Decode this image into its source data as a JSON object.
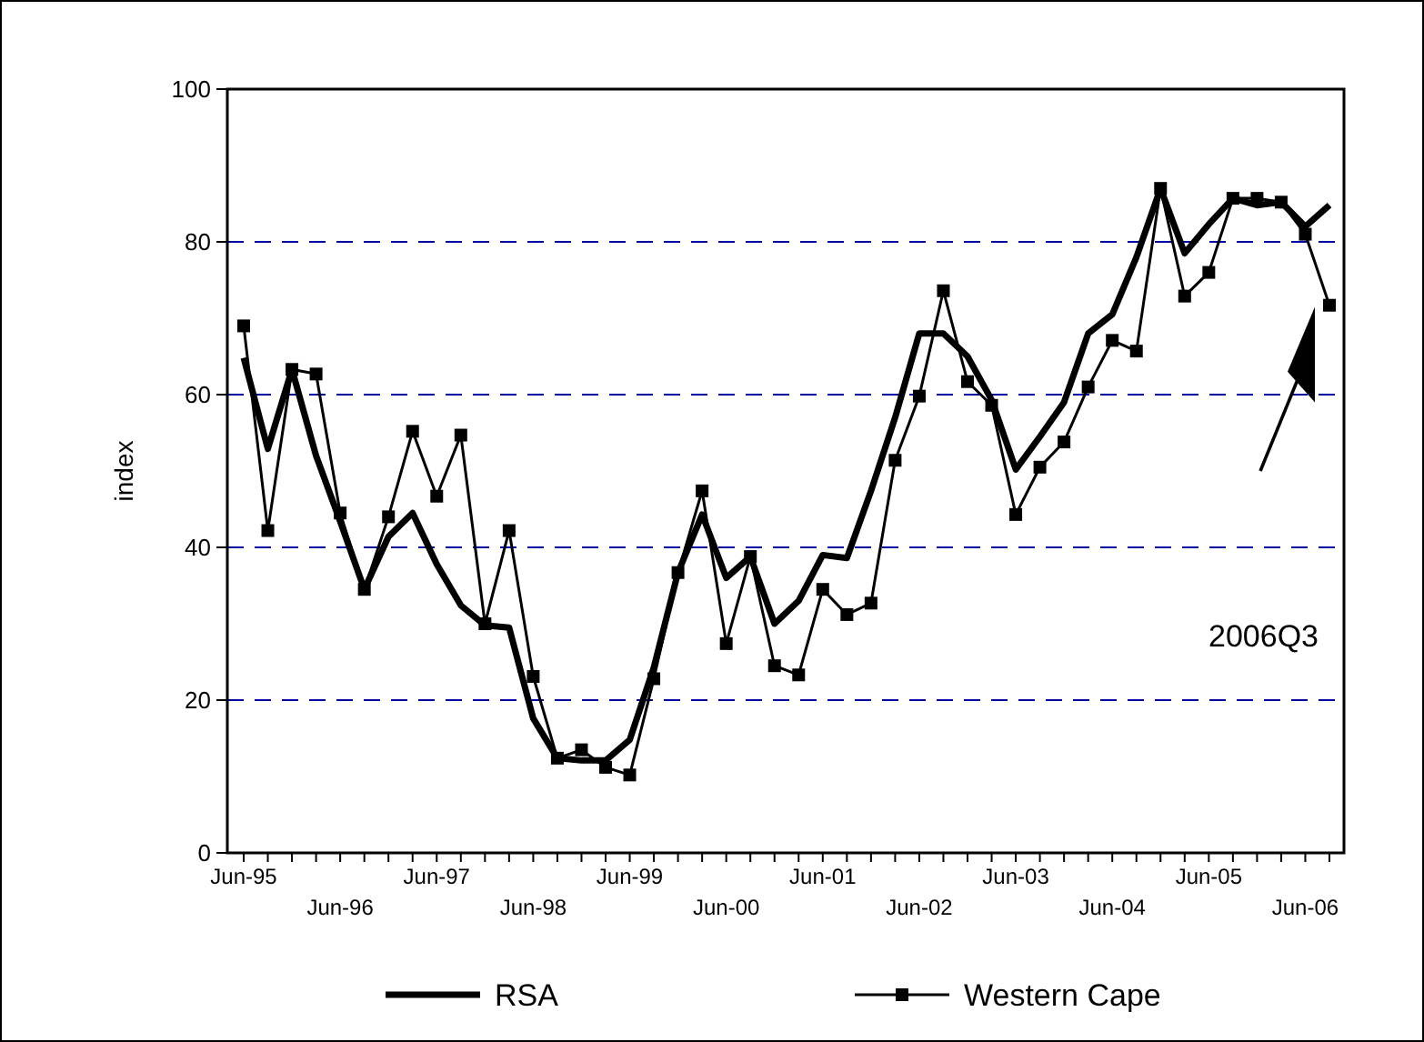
{
  "chart_data": {
    "type": "line",
    "ylabel": "index",
    "categories": [
      "Jun-95",
      null,
      null,
      null,
      "Jun-96",
      null,
      null,
      null,
      "Jun-97",
      null,
      null,
      null,
      "Jun-98",
      null,
      null,
      null,
      "Jun-99",
      null,
      null,
      null,
      "Jun-00",
      null,
      null,
      null,
      "Jun-01",
      null,
      null,
      null,
      "Jun-02",
      null,
      null,
      null,
      "Jun-03",
      null,
      null,
      null,
      "Jun-04",
      null,
      null,
      null,
      "Jun-05",
      null,
      null,
      null,
      "Jun-06",
      null
    ],
    "series": [
      {
        "name": "RSA",
        "color": "#000000",
        "marker": "none",
        "values": [
          64.8,
          52.9,
          63.3,
          52,
          43.4,
          34.5,
          41.4,
          44.5,
          37.8,
          32.4,
          29.8,
          29.5,
          17.6,
          12.4,
          12.1,
          12.1,
          14.8,
          24.3,
          36.7,
          44.3,
          36,
          38.8,
          30,
          33,
          39,
          38.6,
          47.4,
          57,
          68,
          68,
          65,
          59.3,
          50.2,
          54.5,
          59,
          68,
          70.5,
          78,
          87,
          78.5,
          82.3,
          85.7,
          84.8,
          85.2,
          82,
          84.8
        ]
      },
      {
        "name": "Western Cape",
        "color": "#000000",
        "marker": "square",
        "values": [
          69,
          42.2,
          63.3,
          62.7,
          44.5,
          34.5,
          44,
          55.2,
          46.7,
          54.7,
          30,
          42.2,
          23.1,
          12.4,
          13.5,
          11.2,
          10.2,
          22.8,
          36.7,
          47.4,
          27.4,
          38.8,
          24.5,
          23.3,
          34.5,
          31.2,
          32.7,
          51.4,
          59.8,
          73.6,
          61.7,
          58.6,
          44.3,
          50.5,
          53.8,
          61,
          67.1,
          65.7,
          87,
          72.9,
          76,
          85.7,
          85.7,
          85.2,
          81,
          71.7
        ]
      }
    ],
    "ylim": [
      0,
      100
    ],
    "yticks": [
      0,
      20,
      40,
      60,
      80,
      100
    ],
    "grid": "y",
    "legend": "bottom",
    "annotations": [
      "2006Q3"
    ]
  }
}
